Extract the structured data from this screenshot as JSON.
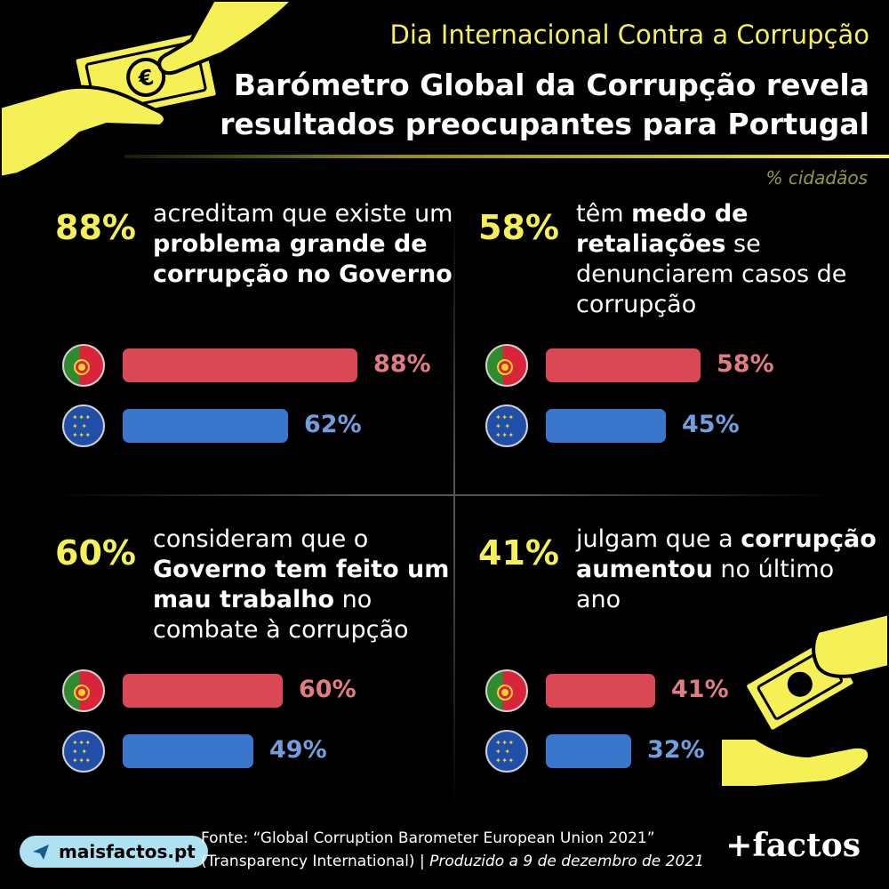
{
  "header": {
    "subtitle": "Dia Internacional Contra a Corrupção",
    "title_line1": "Barómetro Global da Corrupção revela",
    "title_line2": "resultados preocupantes para Portugal",
    "unit": "% cidadãos"
  },
  "colors": {
    "accent": "#f4f055",
    "portugal": "#db4855",
    "eu": "#3a77cc",
    "background": "#000000"
  },
  "icons": {
    "flag_pt": "portugal-flag-icon",
    "flag_eu": "eu-flag-icon",
    "hands": "hand-money-icon",
    "euro": "euro-icon"
  },
  "chart_data": [
    {
      "type": "bar",
      "headline_value": "88%",
      "desc_parts": [
        "acreditam que existe um ",
        "problema grande de corrupção no Governo",
        ""
      ],
      "categories": [
        "Portugal",
        "UE"
      ],
      "values": [
        88,
        62
      ],
      "labels": [
        "88%",
        "62%"
      ],
      "xlim": [
        0,
        100
      ]
    },
    {
      "type": "bar",
      "headline_value": "58%",
      "desc_parts": [
        "têm ",
        "medo de retaliações",
        " se denunciarem casos de corrupção"
      ],
      "categories": [
        "Portugal",
        "UE"
      ],
      "values": [
        58,
        45
      ],
      "labels": [
        "58%",
        "45%"
      ],
      "xlim": [
        0,
        100
      ]
    },
    {
      "type": "bar",
      "headline_value": "60%",
      "desc_parts": [
        "consideram que o ",
        "Governo tem feito um mau trabalho",
        " no combate à corrupção"
      ],
      "categories": [
        "Portugal",
        "UE"
      ],
      "values": [
        60,
        49
      ],
      "labels": [
        "60%",
        "49%"
      ],
      "xlim": [
        0,
        100
      ]
    },
    {
      "type": "bar",
      "headline_value": "41%",
      "desc_parts": [
        "julgam que a ",
        "corrupção aumentou",
        " no último ano"
      ],
      "categories": [
        "Portugal",
        "UE"
      ],
      "values": [
        41,
        32
      ],
      "labels": [
        "41%",
        "32%"
      ],
      "xlim": [
        0,
        100
      ]
    }
  ],
  "footer": {
    "source_line1": "Fonte: “Global Corruption Barometer European Union 2021”",
    "source_line2a": "(Transparency International) | ",
    "source_line2b": "Produzido a 9 de dezembro de 2021",
    "site": "maisfactos.pt",
    "brand": "+factos"
  }
}
